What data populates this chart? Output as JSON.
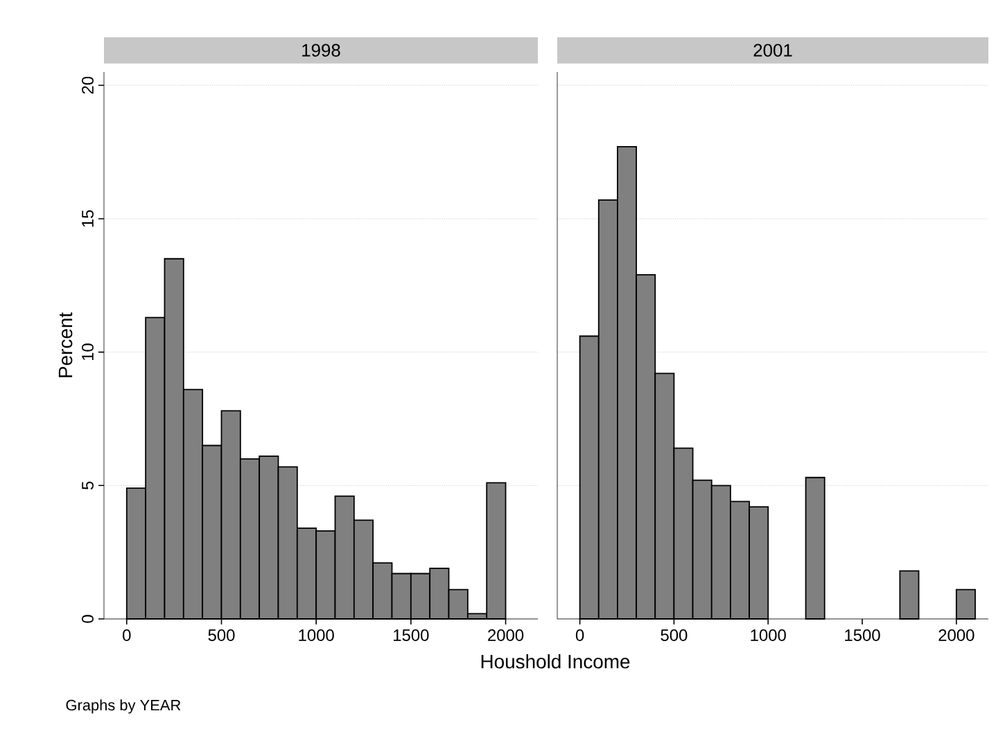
{
  "chart_data": [
    {
      "type": "histogram",
      "title": "1998",
      "ylabel": "Percent",
      "xlabel": "Houshold Income",
      "annotations": [
        "Graphs by YEAR"
      ],
      "color": "#808080",
      "grid": "y",
      "bins": [
        0,
        100,
        200,
        300,
        400,
        500,
        600,
        700,
        800,
        900,
        1000,
        1100,
        1200,
        1300,
        1400,
        1500,
        1600,
        1700,
        1800,
        1900,
        2000
      ],
      "values": [
        4.9,
        11.3,
        13.5,
        8.6,
        6.5,
        7.8,
        6.0,
        6.1,
        5.7,
        3.4,
        3.3,
        4.6,
        3.7,
        2.1,
        1.7,
        1.7,
        1.9,
        1.1,
        0.2,
        5.1
      ],
      "xlim": [
        -120,
        2170
      ],
      "ylim": [
        0,
        20.5
      ],
      "xticks": [
        0,
        500,
        1000,
        1500,
        2000
      ],
      "yticks": [
        0,
        5,
        10,
        15,
        20
      ]
    },
    {
      "type": "histogram",
      "title": "2001",
      "color": "#808080",
      "grid": "y",
      "tick_labels": "x",
      "bins": [
        0,
        100,
        200,
        300,
        400,
        500,
        600,
        700,
        800,
        900,
        1000,
        1100,
        1200,
        1300,
        1400,
        1500,
        1600,
        1700,
        1800,
        1900,
        2000,
        2100
      ],
      "values": [
        10.6,
        15.7,
        17.7,
        12.9,
        9.2,
        6.4,
        5.2,
        5.0,
        4.4,
        4.2,
        0,
        0,
        5.3,
        0,
        0,
        0,
        0,
        1.8,
        0,
        0,
        1.1
      ],
      "xlim": [
        -120,
        2170
      ],
      "ylim": [
        0,
        20.5
      ],
      "xticks": [
        0,
        500,
        1000,
        1500,
        2000
      ],
      "yticks": [
        0,
        5,
        10,
        15,
        20
      ]
    }
  ]
}
